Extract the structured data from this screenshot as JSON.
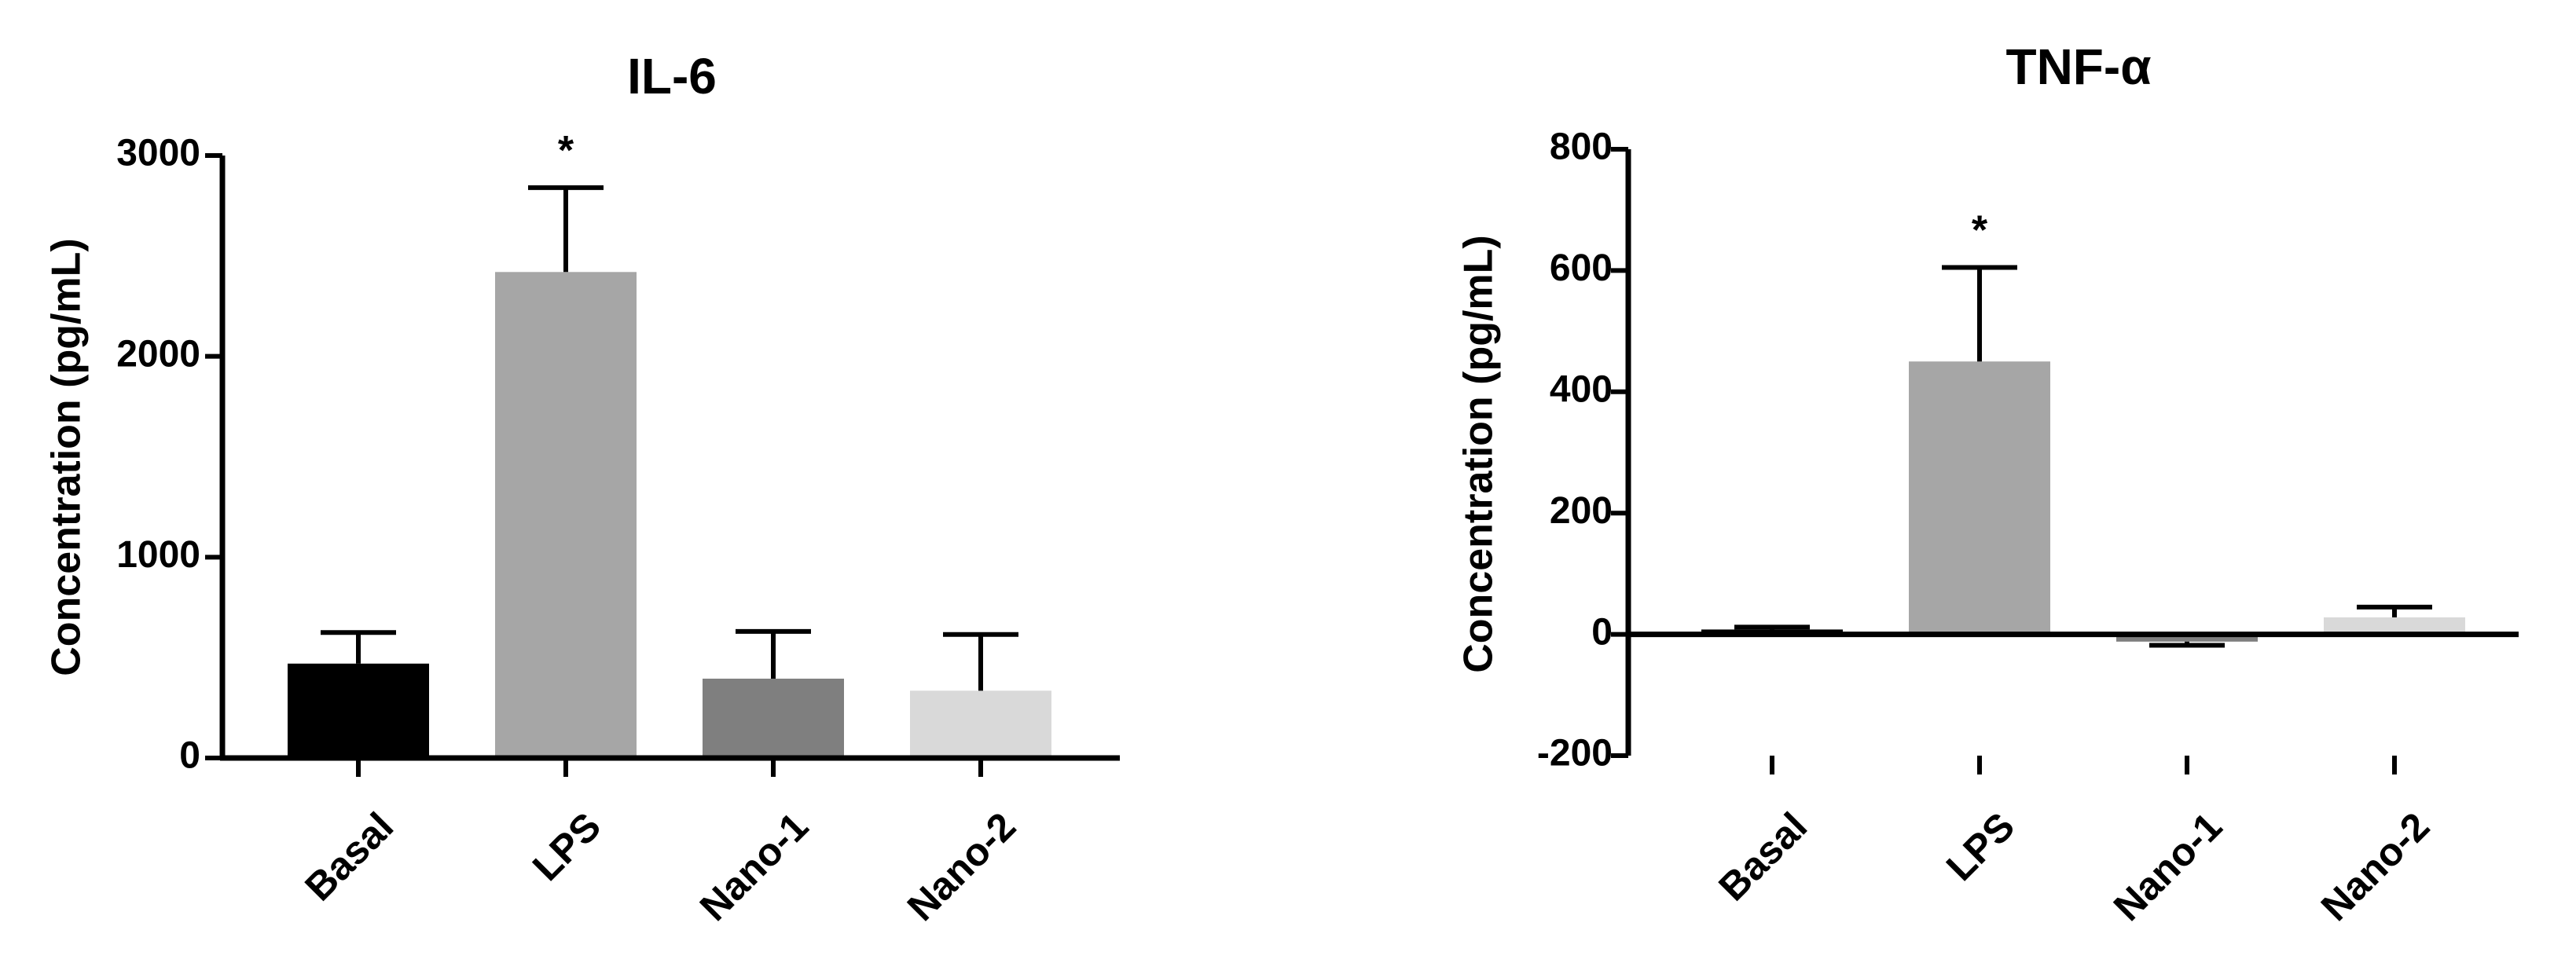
{
  "chart_data": [
    {
      "type": "bar",
      "title": "IL-6",
      "ylabel": "Concentration (pg/mL)",
      "xlabel": "",
      "categories": [
        "Basal",
        "LPS",
        "Nano-1",
        "Nano-2"
      ],
      "values": [
        470,
        2420,
        395,
        335
      ],
      "error_upper": [
        625,
        2840,
        630,
        615
      ],
      "colors": [
        "#000000",
        "#a6a6a6",
        "#7f7f7f",
        "#d9d9d9"
      ],
      "ylim": [
        0,
        3000
      ],
      "yticks": [
        0,
        1000,
        2000,
        3000
      ],
      "annotations": [
        {
          "category": "LPS",
          "text": "*"
        }
      ],
      "grid": false
    },
    {
      "type": "bar",
      "title": "TNF-α",
      "ylabel": "Concentration (pg/mL)",
      "xlabel": "",
      "categories": [
        "Basal",
        "LPS",
        "Nano-1",
        "Nano-2"
      ],
      "values": [
        8,
        450,
        -12,
        28
      ],
      "error_upper": [
        12,
        605,
        -18,
        45
      ],
      "colors": [
        "#000000",
        "#a6a6a6",
        "#7f7f7f",
        "#d9d9d9"
      ],
      "ylim": [
        -200,
        800
      ],
      "yticks": [
        -200,
        0,
        200,
        400,
        600,
        800
      ],
      "annotations": [
        {
          "category": "LPS",
          "text": "*"
        }
      ],
      "grid": false
    }
  ]
}
